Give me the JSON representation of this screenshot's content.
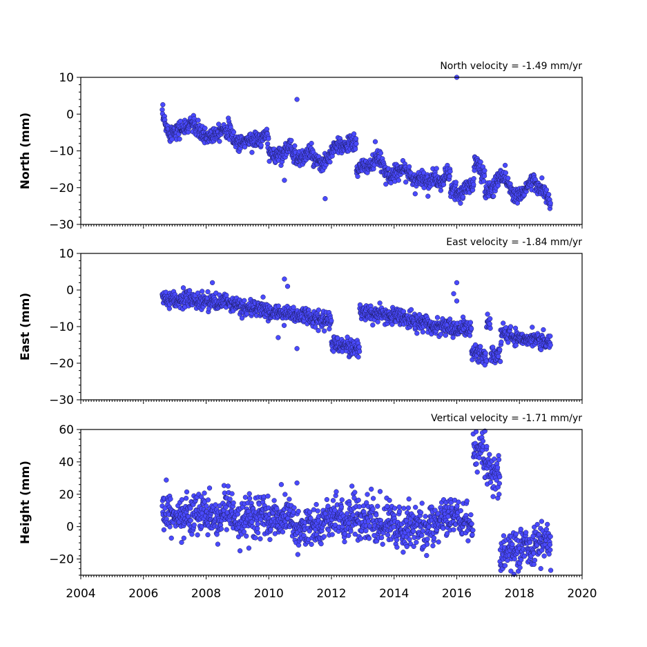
{
  "chart_data": [
    {
      "type": "scatter",
      "panel": "north",
      "title": "North velocity = -1.49 mm/yr",
      "ylabel": "North (mm)",
      "xlim": [
        2004,
        2020
      ],
      "ylim": [
        -30,
        10
      ],
      "yticks": [
        -30,
        -20,
        -10,
        0,
        10
      ],
      "xticks": [
        2004,
        2006,
        2008,
        2010,
        2012,
        2014,
        2016,
        2018,
        2020
      ],
      "show_x_tick_labels": false,
      "marker_color": "#4a4aff",
      "series": [
        {
          "x": [
            2006.6,
            2006.7,
            2006.8,
            2006.9,
            2007.0,
            2007.2,
            2007.4,
            2007.5,
            2007.7,
            2007.9,
            2008.1,
            2008.3,
            2008.5,
            2008.7,
            2008.9,
            2009.1,
            2009.3,
            2009.5,
            2009.7,
            2009.9,
            2010.1,
            2010.3,
            2010.5,
            2010.7,
            2010.9,
            2011.1,
            2011.3,
            2011.5,
            2011.7,
            2011.9,
            2012.1,
            2012.3,
            2012.5,
            2012.7,
            2012.9,
            2013.1,
            2013.3,
            2013.5,
            2013.7,
            2013.9,
            2014.1,
            2014.3,
            2014.5,
            2014.7,
            2014.9,
            2015.1,
            2015.3,
            2015.5,
            2015.7,
            2015.9,
            2016.1,
            2016.3,
            2016.5,
            2016.6,
            2016.8,
            2017.0,
            2017.2,
            2017.4,
            2017.6,
            2017.8,
            2018.0,
            2018.2,
            2018.4,
            2018.6,
            2018.8,
            2019.0
          ],
          "y": [
            0,
            -3,
            -5,
            -5,
            -4,
            -4,
            -4,
            -2,
            -4,
            -6,
            -6,
            -5,
            -4,
            -4,
            -7,
            -8,
            -7,
            -7,
            -7,
            -6,
            -11,
            -11,
            -10,
            -9,
            -12,
            -12,
            -10,
            -13,
            -14,
            -12,
            -9,
            -9,
            -8,
            -8,
            -15,
            -14,
            -14,
            -12,
            -15,
            -17,
            -16,
            -14,
            -17,
            -18,
            -17,
            -19,
            -17,
            -19,
            -16,
            -21,
            -22,
            -20,
            -19,
            -13,
            -16,
            -21,
            -20,
            -16,
            -18,
            -22,
            -22,
            -20,
            -18,
            -20,
            -21,
            -25
          ],
          "outliers": [
            [
              2010.9,
              4
            ],
            [
              2016.0,
              10
            ],
            [
              2011.8,
              -23
            ],
            [
              2010.5,
              -18
            ],
            [
              2013.4,
              -7.5
            ]
          ]
        }
      ]
    },
    {
      "type": "scatter",
      "panel": "east",
      "title": "East velocity = -1.84 mm/yr",
      "ylabel": "East (mm)",
      "xlim": [
        2004,
        2020
      ],
      "ylim": [
        -30,
        10
      ],
      "yticks": [
        -30,
        -20,
        -10,
        0,
        10
      ],
      "xticks": [
        2004,
        2006,
        2008,
        2010,
        2012,
        2014,
        2016,
        2018,
        2020
      ],
      "show_x_tick_labels": false,
      "marker_color": "#4a4aff",
      "series": [
        {
          "x": [
            2006.6,
            2006.8,
            2007.0,
            2007.2,
            2007.4,
            2007.6,
            2007.8,
            2008.0,
            2008.2,
            2008.4,
            2008.6,
            2008.8,
            2009.0,
            2009.2,
            2009.4,
            2009.6,
            2009.8,
            2010.0,
            2010.2,
            2010.4,
            2010.6,
            2010.8,
            2011.0,
            2011.2,
            2011.4,
            2011.6,
            2011.8,
            2011.95,
            2012.05,
            2012.3,
            2012.5,
            2012.7,
            2012.85,
            2012.95,
            2013.2,
            2013.4,
            2013.6,
            2013.8,
            2014.0,
            2014.2,
            2014.4,
            2014.6,
            2014.8,
            2015.0,
            2015.2,
            2015.4,
            2015.6,
            2015.8,
            2016.0,
            2016.2,
            2016.4,
            2016.55,
            2016.7,
            2016.9,
            2017.0,
            2017.15,
            2017.3,
            2017.5,
            2017.7,
            2017.9,
            2018.1,
            2018.3,
            2018.5,
            2018.7,
            2018.9,
            2019.0
          ],
          "y": [
            -2,
            -3,
            -3,
            -3,
            -2,
            -3,
            -3,
            -3,
            -3,
            -4,
            -3,
            -4,
            -4,
            -5,
            -5,
            -5,
            -5,
            -6,
            -6,
            -7,
            -6,
            -7,
            -7,
            -7,
            -8,
            -8,
            -8,
            -8,
            -15,
            -15,
            -15,
            -16,
            -16,
            -6,
            -6,
            -7,
            -7,
            -7,
            -7,
            -7,
            -8,
            -8,
            -9,
            -9,
            -10,
            -10,
            -10,
            -10,
            -11,
            -10,
            -11,
            -17,
            -17,
            -18,
            -9,
            -18,
            -18,
            -12,
            -12,
            -13,
            -13,
            -13,
            -13,
            -14,
            -14,
            -14
          ],
          "outliers": [
            [
              2008.2,
              2
            ],
            [
              2010.5,
              3
            ],
            [
              2010.6,
              1
            ],
            [
              2016.0,
              2
            ],
            [
              2015.9,
              -1
            ],
            [
              2016.0,
              -3
            ],
            [
              2010.3,
              -13
            ],
            [
              2010.9,
              -16
            ],
            [
              2016.9,
              -20.5
            ]
          ]
        }
      ]
    },
    {
      "type": "scatter",
      "panel": "height",
      "title": "Vertical velocity = -1.71 mm/yr",
      "ylabel": "Height (mm)",
      "xlim": [
        2004,
        2020
      ],
      "ylim": [
        -30,
        60
      ],
      "yticks": [
        -20,
        0,
        20,
        40,
        60
      ],
      "xticks": [
        2004,
        2006,
        2008,
        2010,
        2012,
        2014,
        2016,
        2018,
        2020
      ],
      "show_x_tick_labels": true,
      "marker_color": "#4a4aff",
      "series": [
        {
          "x": [
            2006.6,
            2006.8,
            2007.0,
            2007.2,
            2007.4,
            2007.6,
            2007.8,
            2008.0,
            2008.2,
            2008.4,
            2008.6,
            2008.8,
            2009.0,
            2009.2,
            2009.4,
            2009.6,
            2009.8,
            2010.0,
            2010.2,
            2010.4,
            2010.6,
            2010.8,
            2011.0,
            2011.2,
            2011.4,
            2011.6,
            2011.8,
            2012.0,
            2012.2,
            2012.4,
            2012.6,
            2012.8,
            2013.0,
            2013.2,
            2013.4,
            2013.6,
            2013.8,
            2014.0,
            2014.2,
            2014.4,
            2014.6,
            2014.8,
            2015.0,
            2015.2,
            2015.4,
            2015.6,
            2015.8,
            2016.0,
            2016.2,
            2016.45,
            2016.6,
            2016.8,
            2016.9,
            2017.15,
            2017.3,
            2017.45,
            2017.6,
            2017.8,
            2018.0,
            2018.2,
            2018.4,
            2018.6,
            2018.8,
            2019.0
          ],
          "y": [
            10,
            8,
            4,
            6,
            8,
            6,
            10,
            8,
            4,
            6,
            10,
            8,
            2,
            4,
            6,
            4,
            8,
            4,
            6,
            4,
            6,
            2,
            -2,
            0,
            2,
            0,
            2,
            4,
            6,
            4,
            8,
            6,
            2,
            4,
            2,
            0,
            4,
            2,
            -2,
            2,
            0,
            2,
            -4,
            0,
            2,
            4,
            6,
            8,
            2,
            0,
            45,
            50,
            42,
            30,
            35,
            -18,
            -15,
            -12,
            -18,
            -10,
            -14,
            -10,
            -6,
            -12
          ],
          "outliers": [
            [
              2010.4,
              26
            ],
            [
              2010.9,
              27
            ],
            [
              2016.9,
              59
            ],
            [
              2017.35,
              20
            ],
            [
              2019.0,
              -27
            ]
          ]
        }
      ]
    }
  ]
}
